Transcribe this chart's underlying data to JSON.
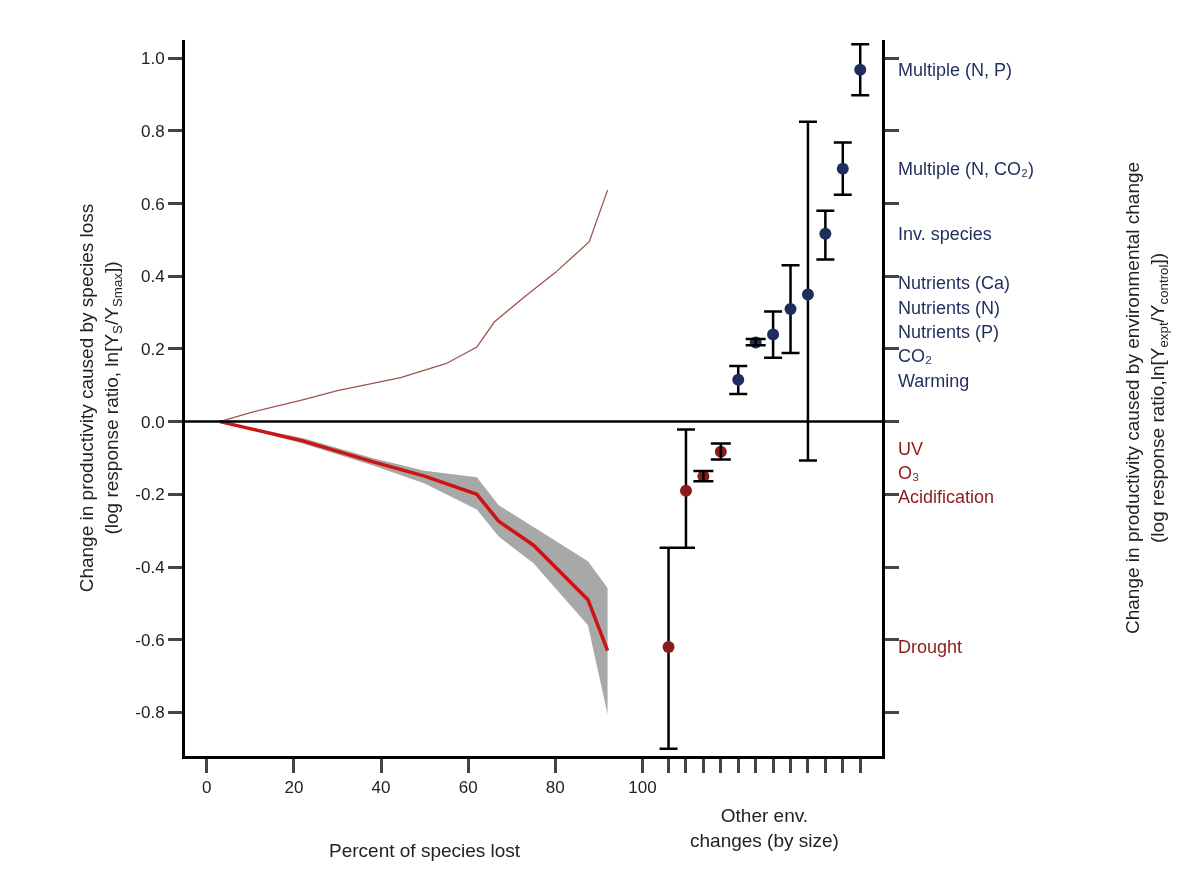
{
  "chart_data": {
    "type": "line",
    "xlabel": "Percent of species lost",
    "x2label": "Other env.\nchanges (by size)",
    "ylabel": "Change in productivity caused by species loss\n(log response ratio, ln[Y$_{S}$/Y$_{Smax}$])",
    "annotations": [
      "Change in productivity caused by environmental change\n(log response ratio,ln[Y$_{expt}$/Y$_{control}$])"
    ],
    "xlim": [
      -5,
      155
    ],
    "xticks": [
      0,
      20,
      40,
      60,
      80,
      100,
      {
        "value": 106,
        "label": null
      },
      {
        "value": 110,
        "label": null
      },
      {
        "value": 114,
        "label": null
      },
      {
        "value": 118,
        "label": null
      },
      {
        "value": 122,
        "label": null
      },
      {
        "value": 126,
        "label": null
      },
      {
        "value": 130,
        "label": null
      },
      {
        "value": 134,
        "label": null
      },
      {
        "value": 138,
        "label": null
      },
      {
        "value": 142,
        "label": null
      },
      {
        "value": 146,
        "label": null
      },
      {
        "value": 150,
        "label": null
      }
    ],
    "ylim": [
      -0.92,
      1.05
    ],
    "yticks": [
      -0.8,
      -0.6,
      -0.4,
      -0.2,
      {
        "value": 0,
        "label": "0.0"
      },
      0.2,
      0.4,
      0.6,
      0.8,
      {
        "value": 1,
        "label": "1.0"
      }
    ],
    "legend": "right",
    "line_style": "solid",
    "ref_lines": [
      {
        "axis": "y",
        "value": 0,
        "color": "#000000"
      }
    ],
    "series": [
      {
        "color": "#a0524f",
        "x": [
          3,
          10,
          22,
          30,
          44.5,
          55,
          62,
          66,
          72.6,
          80,
          87.8,
          92
        ],
        "values": [
          0,
          0.025,
          0.06,
          0.085,
          0.121,
          0.16,
          0.205,
          0.274,
          0.34,
          0.41,
          0.495,
          0.637
        ]
      },
      {
        "color": "#cc1414",
        "x": [
          3,
          22,
          38,
          50,
          62,
          67,
          75,
          87.5,
          92
        ],
        "values": [
          0,
          -0.053,
          -0.11,
          -0.15,
          -0.2,
          -0.274,
          -0.34,
          -0.49,
          -0.63
        ],
        "lower": [
          0,
          -0.06,
          -0.12,
          -0.17,
          -0.242,
          -0.316,
          -0.39,
          -0.56,
          -0.805
        ],
        "upper": [
          0,
          -0.045,
          -0.1,
          -0.135,
          -0.153,
          -0.23,
          -0.29,
          -0.384,
          -0.458
        ]
      },
      {
        "type": "scatter",
        "marker": "circle",
        "name": "Drought",
        "color": "#8b1a1a",
        "x": [
          106
        ],
        "values": [
          -0.62
        ],
        "errors": [
          [
            -0.9,
            -0.347
          ]
        ]
      },
      {
        "type": "scatter",
        "marker": "circle",
        "name": "Acidification",
        "color": "#8b1a1a",
        "x": [
          110
        ],
        "values": [
          -0.19
        ],
        "errors": [
          [
            -0.347,
            -0.022
          ]
        ]
      },
      {
        "type": "scatter",
        "marker": "circle",
        "name": "O₃",
        "color": "#8b1a1a",
        "x": [
          114
        ],
        "values": [
          -0.15
        ],
        "errors": [
          [
            -0.164,
            -0.136
          ]
        ]
      },
      {
        "type": "scatter",
        "marker": "circle",
        "name": "UV",
        "color": "#8b1a1a",
        "x": [
          118
        ],
        "values": [
          -0.083
        ],
        "errors": [
          [
            -0.104,
            -0.06
          ]
        ]
      },
      {
        "type": "scatter",
        "marker": "circle",
        "name": "Warming",
        "color": "#1f2d5c",
        "x": [
          122
        ],
        "values": [
          0.115
        ],
        "errors": [
          [
            0.076,
            0.153
          ]
        ]
      },
      {
        "type": "scatter",
        "marker": "circle",
        "name": "CO₂",
        "color": "#1f2d5c",
        "x": [
          126
        ],
        "values": [
          0.218
        ],
        "errors": [
          [
            0.21,
            0.227
          ]
        ]
      },
      {
        "type": "scatter",
        "marker": "circle",
        "name": "Nutrients (P)",
        "color": "#1f2d5c",
        "x": [
          130
        ],
        "values": [
          0.24
        ],
        "errors": [
          [
            0.176,
            0.303
          ]
        ]
      },
      {
        "type": "scatter",
        "marker": "circle",
        "name": "Nutrients (N)",
        "color": "#1f2d5c",
        "x": [
          134
        ],
        "values": [
          0.31
        ],
        "errors": [
          [
            0.189,
            0.43
          ]
        ]
      },
      {
        "type": "scatter",
        "marker": "circle",
        "name": "Nutrients (Ca)",
        "color": "#1f2d5c",
        "x": [
          138
        ],
        "values": [
          0.35
        ],
        "errors": [
          [
            -0.107,
            0.825
          ]
        ]
      },
      {
        "type": "scatter",
        "marker": "circle",
        "name": "Inv. species",
        "color": "#1f2d5c",
        "x": [
          142
        ],
        "values": [
          0.517
        ],
        "errors": [
          [
            0.446,
            0.58
          ]
        ]
      },
      {
        "type": "scatter",
        "marker": "circle",
        "name": "Multiple (N, CO₂)",
        "color": "#1f2d5c",
        "x": [
          146
        ],
        "values": [
          0.696
        ],
        "errors": [
          [
            0.624,
            0.768
          ]
        ]
      },
      {
        "type": "scatter",
        "marker": "circle",
        "name": "Multiple (N, P)",
        "color": "#1f2d5c",
        "x": [
          150
        ],
        "values": [
          0.968
        ],
        "errors": [
          [
            0.898,
            1.038
          ]
        ]
      }
    ]
  }
}
